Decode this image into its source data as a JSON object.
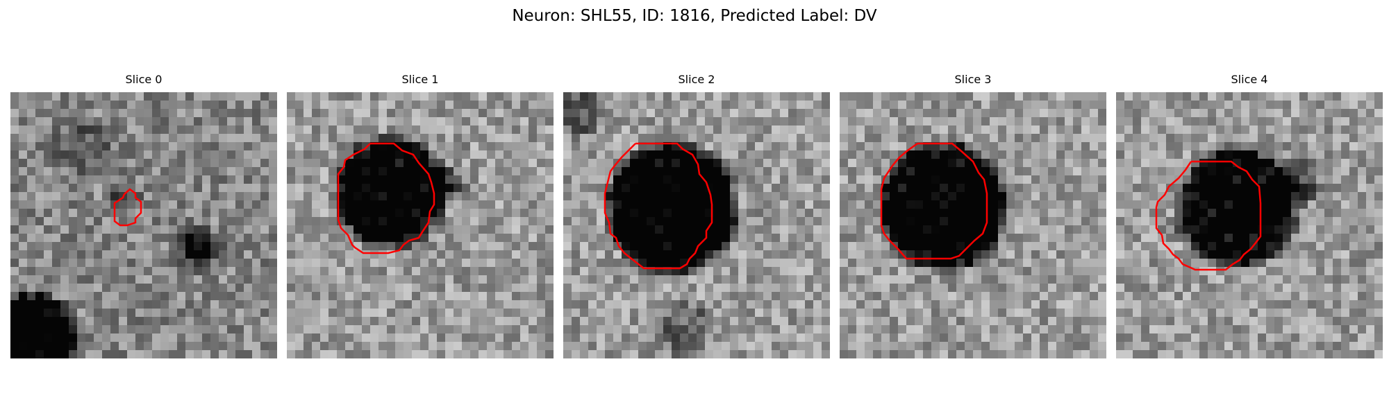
{
  "figure": {
    "title": "Neuron: SHL55, ID: 1816, Predicted Label: DV"
  },
  "panels": [
    {
      "title": "Slice 0",
      "contour_color": "#ff0000"
    },
    {
      "title": "Slice 1",
      "contour_color": "#ff0000"
    },
    {
      "title": "Slice 2",
      "contour_color": "#ff0000"
    },
    {
      "title": "Slice 3",
      "contour_color": "#ff0000"
    },
    {
      "title": "Slice 4",
      "contour_color": "#ff0000"
    }
  ],
  "colormap": "grayscale"
}
